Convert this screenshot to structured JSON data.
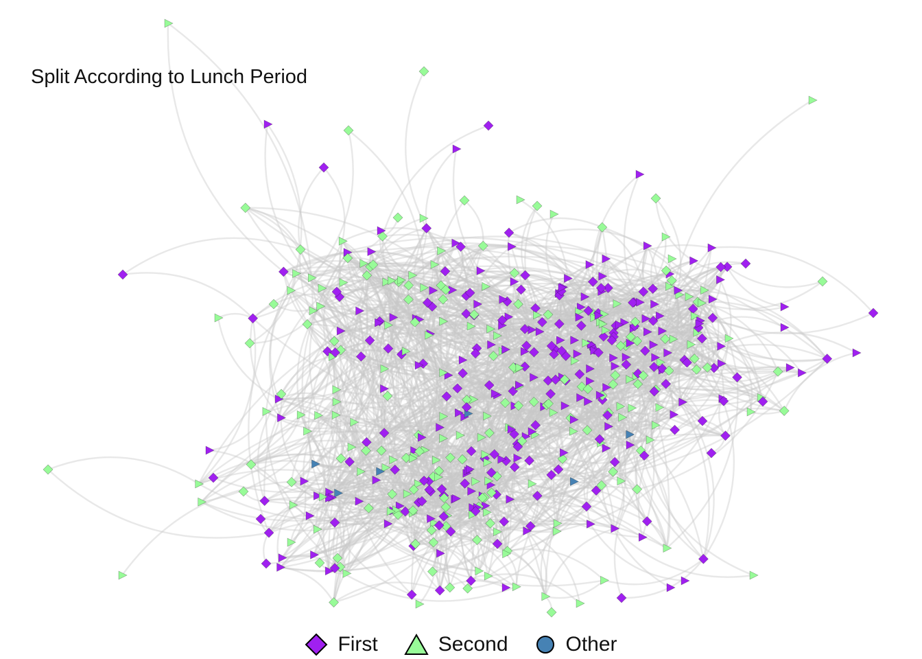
{
  "title": "Split According to Lunch Period",
  "legend": {
    "items": [
      {
        "key": "first",
        "label": "First",
        "shape": "diamond",
        "color": "#A020F0"
      },
      {
        "key": "second",
        "label": "Second",
        "shape": "triangle",
        "color": "#98FB98"
      },
      {
        "key": "other",
        "label": "Other",
        "shape": "circle",
        "color": "#4682B4"
      }
    ]
  },
  "colors": {
    "edge": "#c8c8c8",
    "first": "#A020F0",
    "second": "#98FB98",
    "other": "#4682B4"
  }
}
